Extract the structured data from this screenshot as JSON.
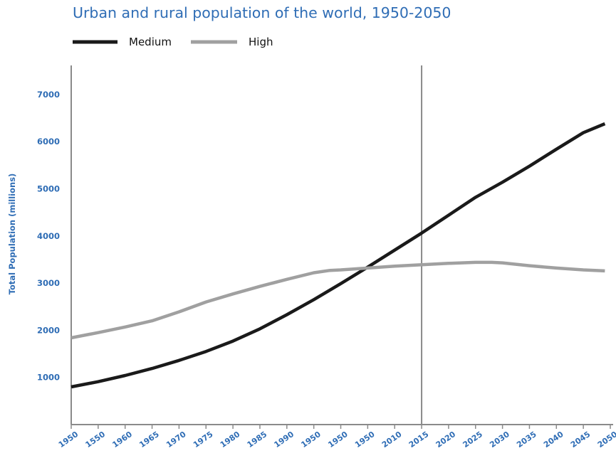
{
  "colors": {
    "title": "#2f6db5",
    "axis_text": "#2f6db5",
    "axis_line": "#8a8a8a",
    "divider": "#8a8a8a",
    "medium": "#1a1a1a",
    "high": "#a0a0a0"
  },
  "chart_data": {
    "type": "line",
    "title": "Urban and rural population of the world, 1950-2050",
    "xlabel": "",
    "ylabel": "Total Population (millions)",
    "x_tick_labels": [
      "1950",
      "1550",
      "1960",
      "1965",
      "1970",
      "1975",
      "1980",
      "1985",
      "1990",
      "1950",
      "1950",
      "1950",
      "2010",
      "2015",
      "2020",
      "2025",
      "2030",
      "2035",
      "2040",
      "2045",
      "2050"
    ],
    "y_ticks": [
      1000,
      2000,
      3000,
      4000,
      5000,
      6000,
      7000
    ],
    "ylim": [
      0,
      7700
    ],
    "xlim": [
      1950,
      2050
    ],
    "divider_x": 2015,
    "grid": false,
    "legend": "top-left",
    "series": [
      {
        "name": "Medium",
        "x": [
          1950,
          1955,
          1960,
          1965,
          1970,
          1975,
          1980,
          1985,
          1990,
          1995,
          2000,
          2005,
          2010,
          2015,
          2020,
          2025,
          2030,
          2035,
          2040,
          2045,
          2049
        ],
        "values": [
          800,
          910,
          1040,
          1190,
          1360,
          1550,
          1770,
          2030,
          2330,
          2650,
          2990,
          3340,
          3700,
          4060,
          4440,
          4820,
          5140,
          5480,
          5840,
          6190,
          6380
        ]
      },
      {
        "name": "High",
        "x": [
          1950,
          1955,
          1960,
          1965,
          1970,
          1975,
          1980,
          1985,
          1990,
          1995,
          1998,
          2000,
          2005,
          2010,
          2015,
          2020,
          2025,
          2028,
          2030,
          2035,
          2040,
          2045,
          2049
        ],
        "values": [
          1840,
          1950,
          2070,
          2200,
          2390,
          2600,
          2770,
          2930,
          3080,
          3220,
          3270,
          3280,
          3320,
          3360,
          3390,
          3420,
          3440,
          3440,
          3430,
          3370,
          3320,
          3280,
          3260
        ]
      }
    ]
  }
}
